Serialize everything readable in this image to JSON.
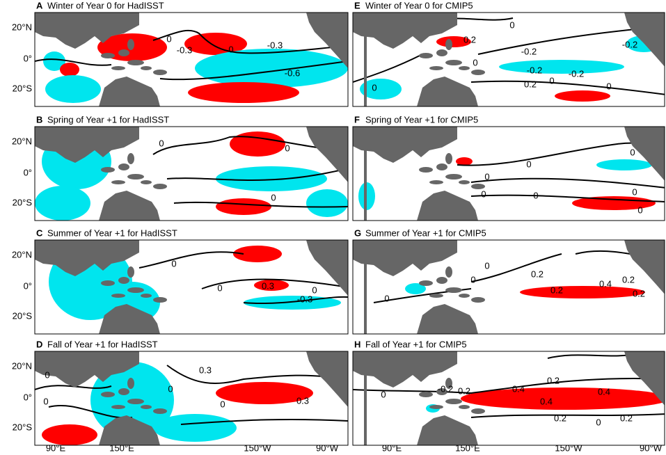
{
  "panels": [
    {
      "letter": "A",
      "title": "Winter of Year 0 for HadISST",
      "contour_labels": [
        "0",
        "-0.3",
        "0",
        "-0.3",
        "-0.6"
      ]
    },
    {
      "letter": "B",
      "title": "Spring of Year +1 for HadISST",
      "contour_labels": [
        "0",
        "0",
        "0"
      ]
    },
    {
      "letter": "C",
      "title": "Summer of Year +1 for HadISST",
      "contour_labels": [
        "0",
        "0",
        "0.3",
        "0",
        "-0.3"
      ]
    },
    {
      "letter": "D",
      "title": "Fall of Year +1 for HadISST",
      "contour_labels": [
        "0",
        "0",
        "0",
        "0.3",
        "0",
        "0.3"
      ]
    },
    {
      "letter": "E",
      "title": "Winter of Year 0 for CMIP5",
      "contour_labels": [
        "0.2",
        "0",
        "-0.2",
        "-0.2",
        "-0.2",
        "-0.2",
        "0",
        "0",
        "0.2",
        "0",
        "0"
      ]
    },
    {
      "letter": "F",
      "title": "Spring of Year +1 for CMIP5",
      "contour_labels": [
        "0",
        "0",
        "0",
        "0",
        "0",
        "0",
        "0"
      ]
    },
    {
      "letter": "G",
      "title": "Summer of Year +1 for CMIP5",
      "contour_labels": [
        "0",
        "0",
        "0.2",
        "0.2",
        "0.4",
        "0.2",
        "0.2",
        "0"
      ]
    },
    {
      "letter": "H",
      "title": "Fall of Year +1 for CMIP5",
      "contour_labels": [
        "0",
        "-0.2",
        "0.2",
        "0.4",
        "0.2",
        "0.4",
        "0.4",
        "0.2",
        "0",
        "0.2"
      ]
    }
  ],
  "y_tick_labels": [
    "20°N",
    "0°",
    "20°S"
  ],
  "x_tick_labels": [
    "90°E",
    "150°E",
    "150°W",
    "90°W"
  ]
}
